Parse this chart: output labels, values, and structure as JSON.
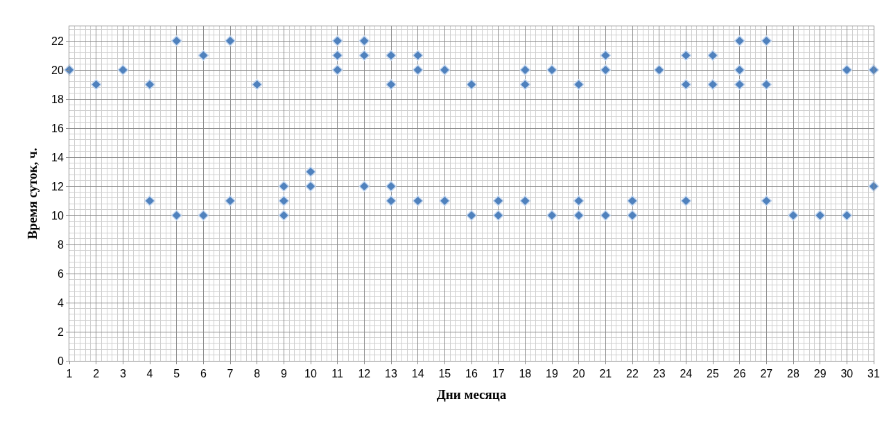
{
  "chart_data": {
    "type": "scatter",
    "xlabel": "Дни месяца",
    "ylabel": "Время суток, ч.",
    "x": [
      1,
      2,
      3,
      4,
      4,
      5,
      5,
      6,
      6,
      7,
      7,
      8,
      9,
      9,
      9,
      10,
      10,
      11,
      11,
      11,
      12,
      12,
      12,
      13,
      13,
      13,
      13,
      14,
      14,
      14,
      15,
      15,
      16,
      16,
      17,
      17,
      18,
      18,
      18,
      19,
      19,
      20,
      20,
      20,
      21,
      21,
      21,
      22,
      22,
      23,
      24,
      24,
      24,
      25,
      25,
      26,
      26,
      26,
      27,
      27,
      27,
      28,
      29,
      30,
      30,
      31,
      31
    ],
    "series": [
      {
        "color": "#4f81bd",
        "values": [
          20,
          19,
          20,
          19,
          11,
          22,
          10,
          21,
          10,
          22,
          11,
          19,
          12,
          11,
          10,
          13,
          12,
          22,
          21,
          20,
          22,
          21,
          12,
          21,
          19,
          12,
          11,
          21,
          20,
          11,
          20,
          11,
          19,
          10,
          11,
          10,
          20,
          19,
          11,
          20,
          10,
          19,
          11,
          10,
          21,
          20,
          10,
          11,
          10,
          20,
          21,
          19,
          11,
          21,
          19,
          22,
          20,
          19,
          22,
          19,
          11,
          10,
          10,
          20,
          10,
          20,
          12
        ]
      }
    ],
    "xlim": [
      1,
      31
    ],
    "xticks": [
      1,
      2,
      3,
      4,
      5,
      6,
      7,
      8,
      9,
      10,
      11,
      12,
      13,
      14,
      15,
      16,
      17,
      18,
      19,
      20,
      21,
      22,
      23,
      24,
      25,
      26,
      27,
      28,
      29,
      30,
      31
    ],
    "ylim": [
      0,
      23
    ],
    "yticks": [
      0,
      2,
      4,
      6,
      8,
      10,
      12,
      14,
      16,
      18,
      20,
      22
    ],
    "grid": true,
    "marker": "diamond"
  }
}
